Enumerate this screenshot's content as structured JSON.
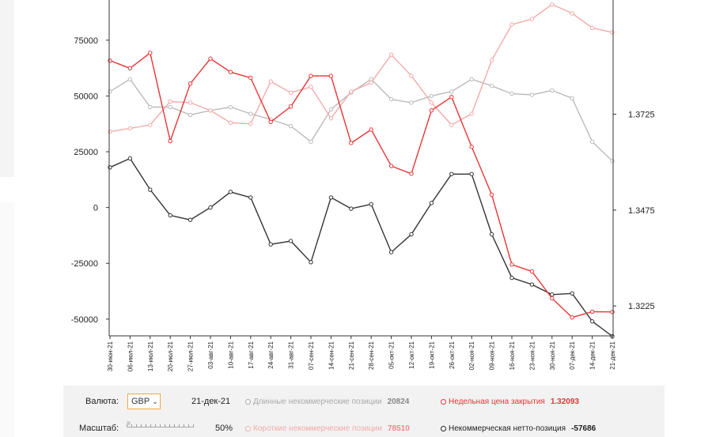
{
  "chart_data": {
    "type": "line",
    "categories": [
      "30-июн-21",
      "06-июл-21",
      "13-июл-21",
      "20-июл-21",
      "27-июл-21",
      "03-авг-21",
      "10-авг-21",
      "17-авг-21",
      "24-авг-21",
      "31-авг-21",
      "07-сен-21",
      "14-сен-21",
      "21-сен-21",
      "28-сен-21",
      "05-окт-21",
      "12-окт-21",
      "19-окт-21",
      "26-окт-21",
      "02-ноя-21",
      "09-ноя-21",
      "16-ноя-21",
      "23-ноя-21",
      "30-ноя-21",
      "07-дек-21",
      "14-дек-21",
      "21-дек-21"
    ],
    "left_axis": {
      "ylim": [
        -57500,
        93000
      ],
      "ticks": [
        75000,
        50000,
        25000,
        0,
        -25000,
        -50000
      ],
      "tick_labels": [
        "75000",
        "50000",
        "25000",
        "0",
        "-25000",
        "-50000"
      ]
    },
    "right_axis": {
      "ylim": [
        1.3147,
        1.4023
      ],
      "ticks": [
        1.3725,
        1.3475,
        1.3225
      ],
      "tick_labels": [
        "1.3725",
        "1.3475",
        "1.3225"
      ]
    },
    "series": [
      {
        "name": "Длинные некоммерческие позиции",
        "axis": "left",
        "color": "#bbbbbb",
        "values": [
          52000,
          57500,
          45000,
          45000,
          41500,
          43500,
          45000,
          42000,
          39500,
          36500,
          29500,
          44000,
          51500,
          57500,
          48500,
          47000,
          50000,
          52000,
          57500,
          54500,
          51000,
          50500,
          52500,
          49000,
          29500,
          20824
        ]
      },
      {
        "name": "Короткие некоммерческие позиции",
        "axis": "left",
        "color": "#f4aaaa",
        "values": [
          34000,
          35500,
          37000,
          47500,
          47000,
          43500,
          38000,
          37500,
          56500,
          51500,
          54000,
          40000,
          52000,
          56000,
          68500,
          59000,
          47000,
          37000,
          42000,
          66000,
          82000,
          84500,
          91000,
          87000,
          80500,
          78510
        ]
      },
      {
        "name": "Некоммерческая нетто-позиция",
        "axis": "left",
        "color": "#333333",
        "values": [
          18000,
          22000,
          8000,
          -3500,
          -5500,
          0,
          7000,
          4500,
          -16500,
          -15000,
          -24500,
          4500,
          -500,
          1500,
          -20000,
          -12000,
          2000,
          15000,
          15000,
          -12000,
          -31500,
          -34500,
          -39000,
          -38500,
          -51000,
          -57686
        ]
      },
      {
        "name": "Недельная цена закрытия",
        "axis": "right",
        "color": "#e83535",
        "values": [
          1.3865,
          1.3845,
          1.3885,
          1.3655,
          1.3805,
          1.387,
          1.3835,
          1.382,
          1.3705,
          1.3745,
          1.3825,
          1.3825,
          1.365,
          1.3685,
          1.359,
          1.357,
          1.3735,
          1.377,
          1.364,
          1.3515,
          1.3333,
          1.3315,
          1.3245,
          1.3195,
          1.321,
          1.32093
        ]
      }
    ]
  },
  "controls": {
    "currency_label": "Валюта:",
    "currency_value": "GBP",
    "date_value": "21-дек-21",
    "scale_label": "Масштаб:",
    "scale_value": "50%",
    "scale_fraction": 0.0,
    "legend": [
      {
        "label": "Длинные некоммерческие позиции",
        "value": "20824",
        "color": "#aaaaaa"
      },
      {
        "label": "Недельная цена закрытия",
        "value": "1.32093",
        "color": "#e83535"
      },
      {
        "label": "Короткие некоммерческие позиции",
        "value": "78510",
        "color": "#f4aaaa"
      },
      {
        "label": "Некоммерческая нетто-позиция",
        "value": "-57686",
        "color": "#222222"
      }
    ]
  }
}
